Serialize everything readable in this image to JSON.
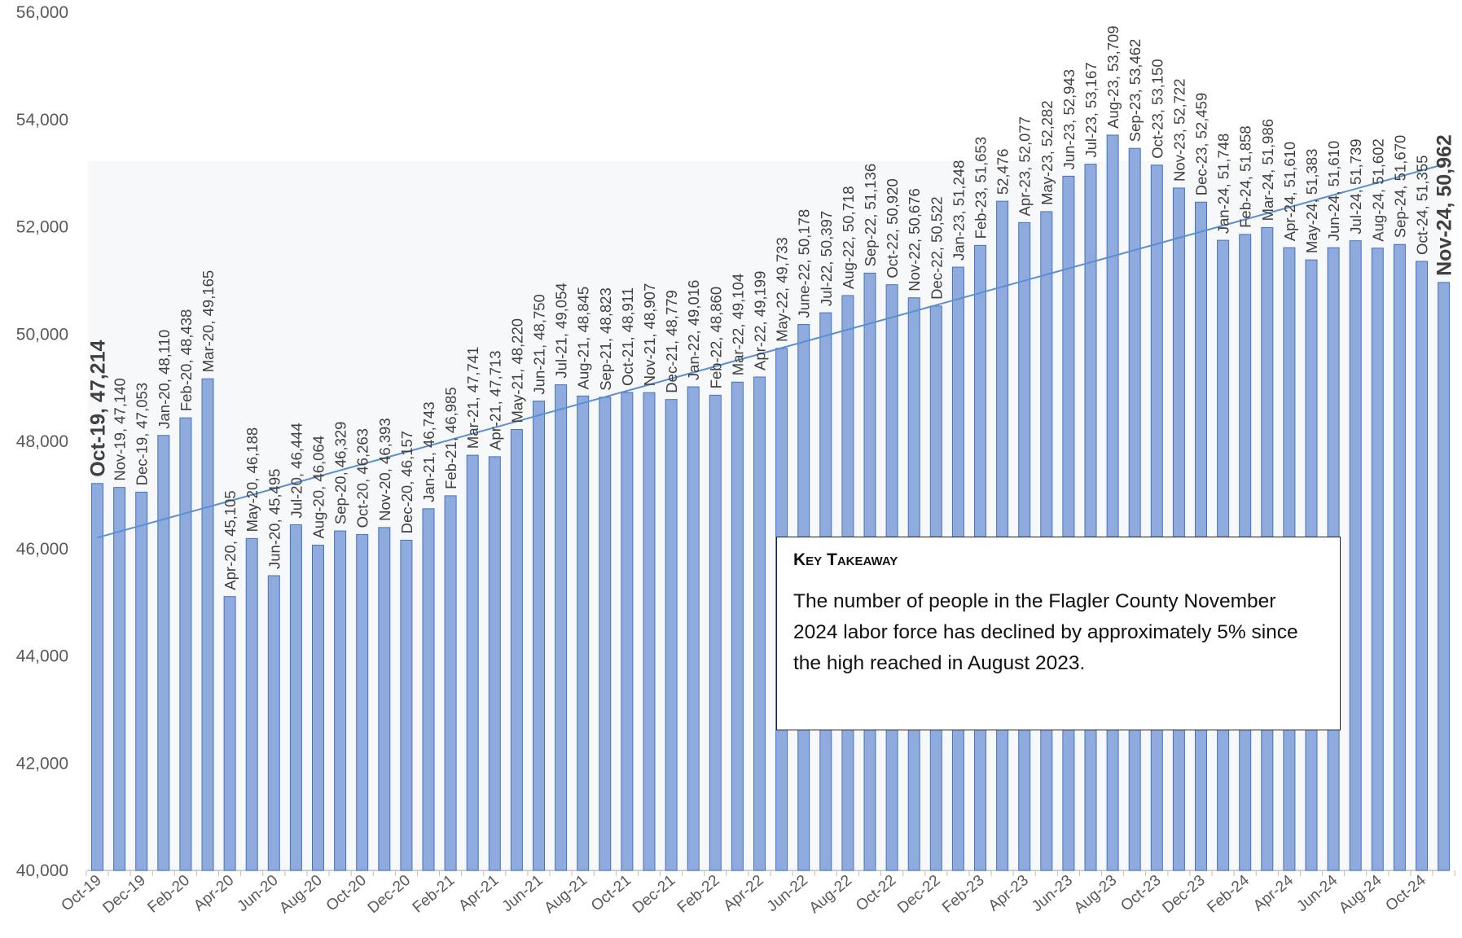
{
  "chart_data": {
    "type": "bar",
    "title": "",
    "xlabel": "",
    "ylabel": "",
    "ylim": [
      40000,
      56000
    ],
    "yticks": [
      "40,000",
      "42,000",
      "44,000",
      "46,000",
      "48,000",
      "50,000",
      "52,000",
      "54,000",
      "56,000"
    ],
    "ytick_values": [
      40000,
      42000,
      44000,
      46000,
      48000,
      50000,
      52000,
      54000,
      56000
    ],
    "grid": false,
    "trendline": true,
    "bar_color": "#8faadc",
    "bar_edge_color": "#4472c4",
    "trend_color": "#5b8fd0",
    "x_tick_labels": [
      "Oct-19",
      "Dec-19",
      "Feb-20",
      "Apr-20",
      "Jun-20",
      "Aug-20",
      "Oct-20",
      "Dec-20",
      "Feb-21",
      "Apr-21",
      "Jun-21",
      "Aug-21",
      "Oct-21",
      "Dec-21",
      "Feb-22",
      "Apr-22",
      "Jun-22",
      "Aug-22",
      "Oct-22",
      "Dec-22",
      "Feb-23",
      "Apr-23",
      "Jun-23",
      "Aug-23",
      "Oct-23",
      "Dec-23",
      "Feb-24",
      "Apr-24",
      "Jun-24",
      "Aug-24",
      "Oct-24"
    ],
    "values": [
      47214,
      47140,
      47053,
      48110,
      48438,
      49165,
      45105,
      46188,
      45495,
      46444,
      46064,
      46329,
      46263,
      46393,
      46157,
      46743,
      46985,
      47741,
      47713,
      48220,
      48750,
      49054,
      48845,
      48823,
      48911,
      48907,
      48779,
      49016,
      48860,
      49104,
      49199,
      49733,
      50178,
      50397,
      50718,
      51136,
      50920,
      50676,
      50522,
      51248,
      51653,
      52476,
      52077,
      52282,
      52943,
      53167,
      53709,
      53462,
      53150,
      52722,
      52459,
      51748,
      51858,
      51986,
      51610,
      51383,
      51610,
      51739,
      51602,
      51670,
      51355,
      50962
    ],
    "data_labels": [
      "Oct-19, 47,214",
      "Nov-19, 47,140",
      "Dec-19, 47,053",
      "Jan-20, 48,110",
      "Feb-20, 48,438",
      "Mar-20, 49,165",
      "Apr-20, 45,105",
      "May-20, 46,188",
      "Jun-20, 45,495",
      "Jul-20, 46,444",
      "Aug-20, 46,064",
      "Sep-20, 46,329",
      "Oct-20, 46,263",
      "Nov-20, 46,393",
      "Dec-20, 46,157",
      "Jan-21, 46,743",
      "Feb-21, 46,985",
      "Mar-21, 47,741",
      "Apr-21, 47,713",
      "May-21, 48,220",
      "Jun-21, 48,750",
      "Jul-21, 49,054",
      "Aug-21, 48,845",
      "Sep-21, 48,823",
      "Oct-21, 48,911",
      "Nov-21, 48,907",
      "Dec-21, 48,779",
      "Jan-22, 49,016",
      "Feb-22, 48,860",
      "Mar-22, 49,104",
      "Apr-22, 49,199",
      "May-22, 49,733",
      "June-22, 50,178",
      "Jul-22, 50,397",
      "Aug-22, 50,718",
      "Sep-22, 51,136",
      "Oct-22, 50,920",
      "Nov-22, 50,676",
      "Dec-22, 50,522",
      "Jan-23, 51,248",
      "Feb-23, 51,653",
      "52,476",
      "Apr-23, 52,077",
      "May-23, 52,282",
      "Jun-23, 52,943",
      "Jul-23, 53,167",
      "Aug-23, 53,709",
      "Sep-23, 53,462",
      "Oct-23, 53,150",
      "Nov-23, 52,722",
      "Dec-23, 52,459",
      "Jan-24, 51,748",
      "Feb-24, 51,858",
      "Mar-24, 51,986",
      "Apr-24, 51,610",
      "May-24, 51,383",
      "Jun-24, 51,610",
      "Jul-24, 51,739",
      "Aug-24, 51,602",
      "Sep-24, 51,670",
      "Oct-24, 51,355",
      "Nov-24, 50,962"
    ],
    "highlight_labels": [
      0,
      61
    ]
  },
  "annotation": {
    "title": "Key Takeaway",
    "text": "The number of people in the Flagler County November 2024 labor force has declined by approximately 5% since the high reached in August 2023."
  }
}
